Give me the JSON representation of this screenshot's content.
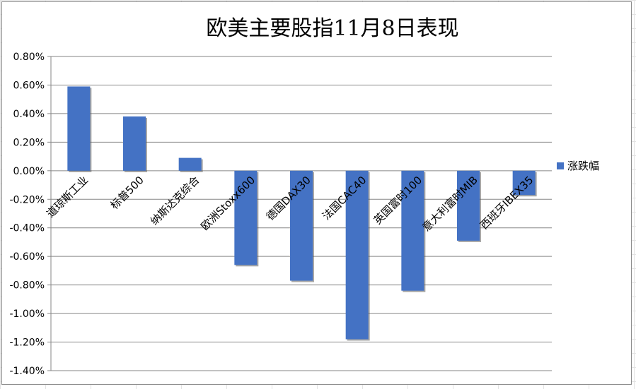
{
  "chart_data": {
    "type": "bar",
    "title": "欧美主要股指11月8日表现",
    "xlabel": "",
    "ylabel": "",
    "categories": [
      "道琼斯工业",
      "标普500",
      "纳斯达克综合",
      "欧洲Stoxx600",
      "德国DAX30",
      "法国CAC40",
      "英国富时100",
      "意大利富时MIB",
      "西班牙IBEX35"
    ],
    "series": [
      {
        "name": "涨跌幅",
        "values": [
          0.59,
          0.38,
          0.09,
          -0.66,
          -0.77,
          -1.18,
          -0.84,
          -0.49,
          -0.17
        ]
      }
    ],
    "ylim": [
      -1.4,
      0.8
    ],
    "yticks": [
      "0.80%",
      "0.60%",
      "0.40%",
      "0.20%",
      "0.00%",
      "-0.20%",
      "-0.40%",
      "-0.60%",
      "-0.80%",
      "-1.00%",
      "-1.20%",
      "-1.40%"
    ],
    "grid": true,
    "legend": "right",
    "colors": {
      "bar": "#4472C4",
      "bar_shadow": "#5f5f5f",
      "grid": "#868686"
    }
  }
}
